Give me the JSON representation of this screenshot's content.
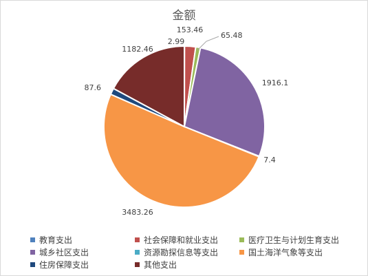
{
  "chart_data": {
    "type": "pie",
    "title": "金额",
    "categories": [
      "教育支出",
      "社会保障和就业支出",
      "医疗卫生与计划生育支出",
      "城乡社区支出",
      "资源勘探信息等支出",
      "国土海洋气象等支出",
      "住房保障支出",
      "其他支出"
    ],
    "values": [
      2.99,
      153.46,
      65.48,
      1916.1,
      7.4,
      3483.26,
      87.6,
      1182.46
    ],
    "data_labels": [
      "2.99",
      "153.46",
      "65.48",
      "1916.1",
      "7.4",
      "3483.26",
      "87.6",
      "1182.46"
    ],
    "colors": [
      "#4f81bd",
      "#c0504d",
      "#9bbb59",
      "#8064a2",
      "#4bacc6",
      "#f79646",
      "#1f497d",
      "#772c2a"
    ],
    "legend_position": "bottom"
  }
}
